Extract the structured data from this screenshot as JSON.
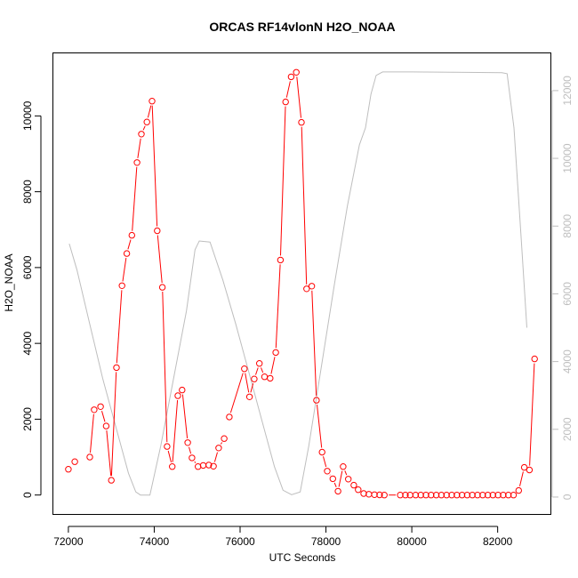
{
  "chart_data": {
    "type": "line",
    "title": "ORCAS RF14vlonN H2O_NOAA",
    "xlabel": "UTC Seconds",
    "ylabel": "H2O_NOAA",
    "xlim": [
      71650,
      83250
    ],
    "ylim": [
      -500,
      11650
    ],
    "y2lim": [
      -500,
      13100
    ],
    "x_ticks": [
      72000,
      74000,
      76000,
      78000,
      80000,
      82000
    ],
    "y_ticks": [
      0,
      2000,
      4000,
      6000,
      8000,
      10000
    ],
    "y2_ticks": [
      0,
      2000,
      4000,
      6000,
      8000,
      10000,
      12000
    ],
    "grid": false,
    "legend": "none",
    "series": [
      {
        "color": "#ff0000",
        "style": "points-and-lines",
        "points": [
          [
            72000,
            680
          ],
          [
            72150,
            880
          ],
          [
            72500,
            1000
          ],
          [
            72600,
            2250
          ],
          [
            72750,
            2330
          ],
          [
            72880,
            1820
          ],
          [
            73000,
            390
          ],
          [
            73120,
            3360
          ],
          [
            73250,
            5520
          ],
          [
            73360,
            6370
          ],
          [
            73480,
            6850
          ],
          [
            73600,
            8770
          ],
          [
            73700,
            9520
          ],
          [
            73830,
            9840
          ],
          [
            73950,
            10390
          ],
          [
            74070,
            6970
          ],
          [
            74190,
            5480
          ],
          [
            74300,
            1280
          ],
          [
            74420,
            750
          ],
          [
            74550,
            2620
          ],
          [
            74650,
            2770
          ],
          [
            74780,
            1380
          ],
          [
            74880,
            980
          ],
          [
            75020,
            750
          ],
          [
            75140,
            780
          ],
          [
            75270,
            790
          ],
          [
            75380,
            760
          ],
          [
            75500,
            1240
          ],
          [
            75630,
            1490
          ],
          [
            75750,
            2060
          ],
          [
            76100,
            3330
          ],
          [
            76220,
            2590
          ],
          [
            76330,
            3060
          ],
          [
            76450,
            3470
          ],
          [
            76570,
            3120
          ],
          [
            76700,
            3080
          ],
          [
            76830,
            3760
          ],
          [
            76940,
            6200
          ],
          [
            77060,
            10370
          ],
          [
            77190,
            11030
          ],
          [
            77310,
            11150
          ],
          [
            77430,
            9830
          ],
          [
            77550,
            5440
          ],
          [
            77670,
            5510
          ],
          [
            77780,
            2500
          ],
          [
            77910,
            1130
          ],
          [
            78030,
            630
          ],
          [
            78160,
            430
          ],
          [
            78280,
            100
          ],
          [
            78400,
            750
          ],
          [
            78520,
            420
          ],
          [
            78650,
            260
          ],
          [
            78750,
            140
          ],
          [
            78880,
            40
          ],
          [
            79000,
            20
          ],
          [
            79130,
            10
          ],
          [
            79250,
            5
          ],
          [
            79360,
            0
          ],
          [
            79730,
            0
          ],
          [
            79850,
            0
          ],
          [
            79960,
            0
          ],
          [
            80090,
            0
          ],
          [
            80210,
            0
          ],
          [
            80330,
            0
          ],
          [
            80450,
            0
          ],
          [
            80570,
            0
          ],
          [
            80690,
            0
          ],
          [
            80810,
            0
          ],
          [
            80930,
            0
          ],
          [
            81050,
            0
          ],
          [
            81170,
            0
          ],
          [
            81290,
            0
          ],
          [
            81410,
            0
          ],
          [
            81530,
            0
          ],
          [
            81650,
            0
          ],
          [
            81770,
            0
          ],
          [
            81890,
            0
          ],
          [
            82010,
            0
          ],
          [
            82130,
            0
          ],
          [
            82250,
            0
          ],
          [
            82370,
            0
          ],
          [
            82490,
            120
          ],
          [
            82620,
            730
          ],
          [
            82740,
            660
          ],
          [
            82860,
            3590
          ]
        ],
        "gaps_after_index": [
          0,
          1,
          28,
          56
        ]
      },
      {
        "color": "#bebebe",
        "style": "line",
        "axis": "right",
        "points": [
          [
            72020,
            7480
          ],
          [
            72200,
            6700
          ],
          [
            72500,
            5100
          ],
          [
            72800,
            3500
          ],
          [
            73100,
            2100
          ],
          [
            73400,
            700
          ],
          [
            73570,
            150
          ],
          [
            73680,
            60
          ],
          [
            73900,
            60
          ],
          [
            74150,
            1500
          ],
          [
            74450,
            3500
          ],
          [
            74750,
            5500
          ],
          [
            74950,
            7300
          ],
          [
            75050,
            7560
          ],
          [
            75300,
            7530
          ],
          [
            75600,
            6400
          ],
          [
            75900,
            5100
          ],
          [
            76200,
            3700
          ],
          [
            76500,
            2300
          ],
          [
            76800,
            900
          ],
          [
            77000,
            200
          ],
          [
            77200,
            70
          ],
          [
            77400,
            150
          ],
          [
            77600,
            1500
          ],
          [
            77900,
            3900
          ],
          [
            78200,
            6300
          ],
          [
            78500,
            8600
          ],
          [
            78780,
            10400
          ],
          [
            78920,
            10900
          ],
          [
            79050,
            11900
          ],
          [
            79170,
            12450
          ],
          [
            79320,
            12550
          ],
          [
            80000,
            12550
          ],
          [
            81000,
            12540
          ],
          [
            82100,
            12530
          ],
          [
            82220,
            12500
          ],
          [
            82380,
            10900
          ],
          [
            82550,
            7600
          ],
          [
            82680,
            5000
          ]
        ]
      }
    ]
  }
}
